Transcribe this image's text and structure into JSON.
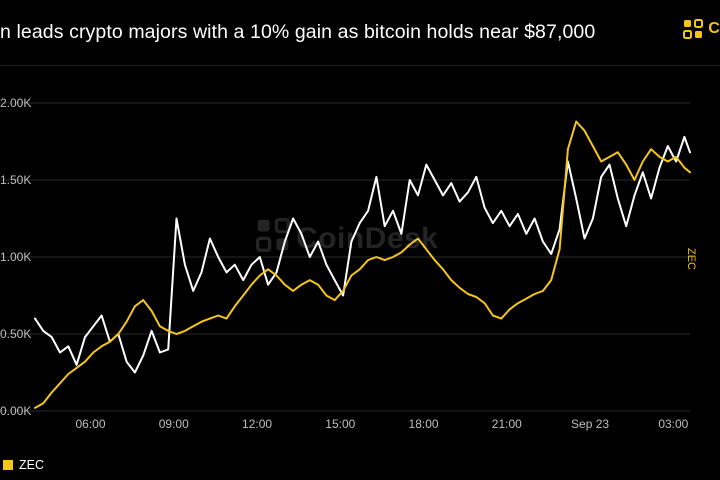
{
  "headline": "n leads crypto majors with a 10% gain as bitcoin holds near $87,000",
  "brand": {
    "name": "Coi",
    "icon": "coindesk-logo-icon"
  },
  "watermark": {
    "text": "CoinDesk",
    "icon": "coindesk-logo-icon"
  },
  "side_label": "ZEC",
  "legend": {
    "items": [
      {
        "label": "ZEC",
        "color": "#f5c518"
      }
    ]
  },
  "colors": {
    "background": "#000000",
    "zec": "#f5c518",
    "comparison": "#ffffff",
    "grid": "#2a2a2a",
    "tick_text": "#bfbfbf"
  },
  "chart_data": {
    "type": "line",
    "x_ticks": [
      "06:00",
      "09:00",
      "12:00",
      "15:00",
      "18:00",
      "21:00",
      "Sep 23",
      "03:00"
    ],
    "y_ticks": [
      "0.00K",
      "0.50K",
      "1.00K",
      "1.50K",
      "2.00K"
    ],
    "y_tick_values": [
      0.0,
      0.5,
      1.0,
      1.5,
      2.0
    ],
    "ylim": [
      0.0,
      2.0
    ],
    "xlim_hours": [
      4.0,
      27.6
    ],
    "grid": "horizontal",
    "legend_position": "bottom-left",
    "series": [
      {
        "name": "ZEC",
        "color": "#f5c518",
        "points": [
          [
            4.0,
            0.02
          ],
          [
            4.3,
            0.05
          ],
          [
            4.6,
            0.12
          ],
          [
            4.9,
            0.18
          ],
          [
            5.2,
            0.24
          ],
          [
            5.5,
            0.28
          ],
          [
            5.8,
            0.32
          ],
          [
            6.1,
            0.38
          ],
          [
            6.4,
            0.42
          ],
          [
            6.7,
            0.45
          ],
          [
            7.0,
            0.5
          ],
          [
            7.3,
            0.58
          ],
          [
            7.6,
            0.68
          ],
          [
            7.9,
            0.72
          ],
          [
            8.2,
            0.65
          ],
          [
            8.5,
            0.55
          ],
          [
            8.8,
            0.52
          ],
          [
            9.1,
            0.5
          ],
          [
            9.4,
            0.52
          ],
          [
            9.7,
            0.55
          ],
          [
            10.0,
            0.58
          ],
          [
            10.3,
            0.6
          ],
          [
            10.6,
            0.62
          ],
          [
            10.9,
            0.6
          ],
          [
            11.2,
            0.68
          ],
          [
            11.5,
            0.75
          ],
          [
            11.8,
            0.82
          ],
          [
            12.1,
            0.88
          ],
          [
            12.4,
            0.92
          ],
          [
            12.7,
            0.88
          ],
          [
            13.0,
            0.82
          ],
          [
            13.3,
            0.78
          ],
          [
            13.6,
            0.82
          ],
          [
            13.9,
            0.85
          ],
          [
            14.2,
            0.82
          ],
          [
            14.5,
            0.75
          ],
          [
            14.8,
            0.72
          ],
          [
            15.1,
            0.78
          ],
          [
            15.4,
            0.88
          ],
          [
            15.7,
            0.92
          ],
          [
            16.0,
            0.98
          ],
          [
            16.3,
            1.0
          ],
          [
            16.6,
            0.98
          ],
          [
            16.9,
            1.0
          ],
          [
            17.2,
            1.03
          ],
          [
            17.5,
            1.08
          ],
          [
            17.8,
            1.12
          ],
          [
            18.1,
            1.05
          ],
          [
            18.4,
            0.98
          ],
          [
            18.7,
            0.92
          ],
          [
            19.0,
            0.85
          ],
          [
            19.3,
            0.8
          ],
          [
            19.6,
            0.76
          ],
          [
            19.9,
            0.74
          ],
          [
            20.2,
            0.7
          ],
          [
            20.5,
            0.62
          ],
          [
            20.8,
            0.6
          ],
          [
            21.1,
            0.66
          ],
          [
            21.4,
            0.7
          ],
          [
            21.7,
            0.73
          ],
          [
            22.0,
            0.76
          ],
          [
            22.3,
            0.78
          ],
          [
            22.6,
            0.85
          ],
          [
            22.9,
            1.05
          ],
          [
            23.2,
            1.7
          ],
          [
            23.5,
            1.88
          ],
          [
            23.8,
            1.82
          ],
          [
            24.1,
            1.72
          ],
          [
            24.4,
            1.62
          ],
          [
            24.7,
            1.65
          ],
          [
            25.0,
            1.68
          ],
          [
            25.3,
            1.6
          ],
          [
            25.6,
            1.5
          ],
          [
            25.9,
            1.62
          ],
          [
            26.2,
            1.7
          ],
          [
            26.5,
            1.65
          ],
          [
            26.8,
            1.62
          ],
          [
            27.1,
            1.65
          ],
          [
            27.4,
            1.58
          ],
          [
            27.6,
            1.55
          ]
        ]
      },
      {
        "name": "",
        "color": "#ffffff",
        "points": [
          [
            4.0,
            0.6
          ],
          [
            4.3,
            0.52
          ],
          [
            4.6,
            0.48
          ],
          [
            4.9,
            0.38
          ],
          [
            5.2,
            0.42
          ],
          [
            5.5,
            0.3
          ],
          [
            5.8,
            0.48
          ],
          [
            6.1,
            0.55
          ],
          [
            6.4,
            0.62
          ],
          [
            6.7,
            0.45
          ],
          [
            7.0,
            0.5
          ],
          [
            7.3,
            0.32
          ],
          [
            7.6,
            0.25
          ],
          [
            7.9,
            0.36
          ],
          [
            8.2,
            0.52
          ],
          [
            8.5,
            0.38
          ],
          [
            8.8,
            0.4
          ],
          [
            9.1,
            1.25
          ],
          [
            9.4,
            0.95
          ],
          [
            9.7,
            0.78
          ],
          [
            10.0,
            0.9
          ],
          [
            10.3,
            1.12
          ],
          [
            10.6,
            1.0
          ],
          [
            10.9,
            0.9
          ],
          [
            11.2,
            0.95
          ],
          [
            11.5,
            0.85
          ],
          [
            11.8,
            0.95
          ],
          [
            12.1,
            1.0
          ],
          [
            12.4,
            0.82
          ],
          [
            12.7,
            0.9
          ],
          [
            13.0,
            1.1
          ],
          [
            13.3,
            1.25
          ],
          [
            13.6,
            1.15
          ],
          [
            13.9,
            1.0
          ],
          [
            14.2,
            1.1
          ],
          [
            14.5,
            0.95
          ],
          [
            14.8,
            0.85
          ],
          [
            15.1,
            0.75
          ],
          [
            15.4,
            1.1
          ],
          [
            15.7,
            1.22
          ],
          [
            16.0,
            1.3
          ],
          [
            16.3,
            1.52
          ],
          [
            16.6,
            1.2
          ],
          [
            16.9,
            1.3
          ],
          [
            17.2,
            1.15
          ],
          [
            17.5,
            1.5
          ],
          [
            17.8,
            1.4
          ],
          [
            18.1,
            1.6
          ],
          [
            18.4,
            1.5
          ],
          [
            18.7,
            1.4
          ],
          [
            19.0,
            1.48
          ],
          [
            19.3,
            1.36
          ],
          [
            19.6,
            1.42
          ],
          [
            19.9,
            1.52
          ],
          [
            20.2,
            1.32
          ],
          [
            20.5,
            1.22
          ],
          [
            20.8,
            1.3
          ],
          [
            21.1,
            1.2
          ],
          [
            21.4,
            1.28
          ],
          [
            21.7,
            1.15
          ],
          [
            22.0,
            1.25
          ],
          [
            22.3,
            1.1
          ],
          [
            22.6,
            1.02
          ],
          [
            22.9,
            1.18
          ],
          [
            23.2,
            1.62
          ],
          [
            23.5,
            1.38
          ],
          [
            23.8,
            1.12
          ],
          [
            24.1,
            1.25
          ],
          [
            24.4,
            1.52
          ],
          [
            24.7,
            1.6
          ],
          [
            25.0,
            1.38
          ],
          [
            25.3,
            1.2
          ],
          [
            25.6,
            1.4
          ],
          [
            25.9,
            1.55
          ],
          [
            26.2,
            1.38
          ],
          [
            26.5,
            1.58
          ],
          [
            26.8,
            1.72
          ],
          [
            27.1,
            1.62
          ],
          [
            27.4,
            1.78
          ],
          [
            27.6,
            1.68
          ]
        ]
      }
    ]
  }
}
